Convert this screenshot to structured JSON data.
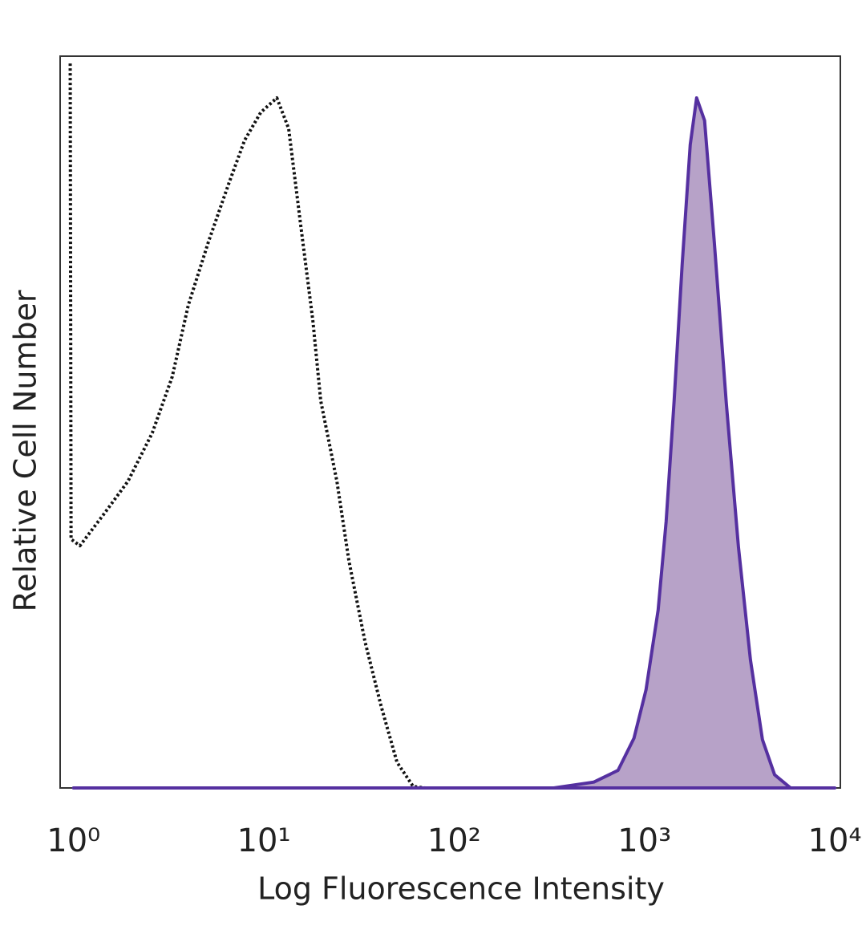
{
  "chart_data": {
    "type": "line",
    "xlabel": "Log Fluorescence Intensity",
    "ylabel": "Relative Cell Number",
    "xscale": "log",
    "xlim": [
      0.85,
      10700
    ],
    "ylim": [
      0,
      100
    ],
    "xticks": [
      {
        "value": 1,
        "label": "10⁰"
      },
      {
        "value": 10,
        "label": "10¹"
      },
      {
        "value": 100,
        "label": "10²"
      },
      {
        "value": 1000,
        "label": "10³"
      },
      {
        "value": 10000,
        "label": "10⁴"
      }
    ],
    "series": [
      {
        "color": "#111111",
        "style": "dotted",
        "filled": false,
        "x": [
          0.96,
          0.97,
          1.08,
          1.45,
          1.93,
          2.59,
          3.3,
          4.01,
          5.11,
          6.52,
          7.92,
          9.62,
          11.7,
          13.5,
          15.6,
          18.1,
          19.9,
          24.2,
          28.0,
          34.0,
          41.3,
          50.1,
          60.9,
          70.5
        ],
        "values": [
          99,
          34,
          33.1,
          37.5,
          41.9,
          48.5,
          56.2,
          66.0,
          74.6,
          82.5,
          88.5,
          92.3,
          94.3,
          90.1,
          77.0,
          63.8,
          52.9,
          41.9,
          31.0,
          20.0,
          11.2,
          3.5,
          0.2,
          0
        ]
      },
      {
        "color": "#5530a0",
        "fill": "#b7a2c8",
        "style": "solid",
        "filled": true,
        "x": [
          1,
          334,
          542,
          726,
          881,
          1019,
          1180,
          1300,
          1432,
          1578,
          1740,
          1880,
          2070,
          2328,
          2692,
          3119,
          3606,
          4169,
          4830,
          5861,
          10000
        ],
        "values": [
          0,
          0,
          0.8,
          2.4,
          6.8,
          13.4,
          24.3,
          36.4,
          52.9,
          71.5,
          87.9,
          94.3,
          91.2,
          74.6,
          52.6,
          32.9,
          17.5,
          6.6,
          1.8,
          0,
          0
        ]
      }
    ]
  }
}
